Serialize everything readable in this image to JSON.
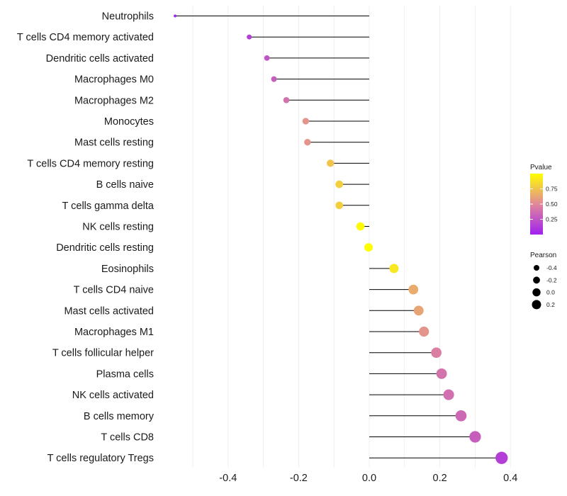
{
  "chart_data": {
    "type": "lollipop",
    "title": "",
    "xlabel": "",
    "ylabel": "",
    "xlim": [
      -0.55,
      0.4
    ],
    "xticks": [
      -0.4,
      -0.2,
      0.0,
      0.2,
      0.4
    ],
    "xtick_labels": [
      "-0.4",
      "-0.2",
      "0.0",
      "0.2",
      "0.4"
    ],
    "grid": "vertical",
    "baseline": 0.0,
    "categories": [
      "Neutrophils",
      "T cells CD4 memory activated",
      "Dendritic cells activated",
      "Macrophages M0",
      "Macrophages M2",
      "Monocytes",
      "Mast cells resting",
      "T cells CD4 memory resting",
      "B cells naive",
      "T cells gamma delta",
      "NK cells resting",
      "Dendritic cells resting",
      "Eosinophils",
      "T cells CD4 naive",
      "Mast cells activated",
      "Macrophages M1",
      "T cells follicular helper",
      "Plasma cells",
      "NK cells activated",
      "B cells memory",
      "T cells CD8",
      "T cells regulatory  Tregs"
    ],
    "pearson": [
      -0.55,
      -0.34,
      -0.29,
      -0.27,
      -0.235,
      -0.18,
      -0.175,
      -0.11,
      -0.085,
      -0.085,
      -0.025,
      -0.002,
      0.07,
      0.125,
      0.14,
      0.155,
      0.19,
      0.205,
      0.225,
      0.26,
      0.3,
      0.375
    ],
    "pvalue": [
      0.02,
      0.15,
      0.25,
      0.3,
      0.4,
      0.55,
      0.55,
      0.75,
      0.8,
      0.8,
      0.98,
      0.99,
      0.9,
      0.65,
      0.62,
      0.55,
      0.45,
      0.4,
      0.38,
      0.35,
      0.3,
      0.15
    ],
    "legend": {
      "color": {
        "title": "Pvalue",
        "ticks": [
          0.75,
          0.5,
          0.25
        ],
        "tick_labels": [
          "0.75",
          "0.50",
          "0.25"
        ],
        "range": [
          0.0,
          1.0
        ],
        "low_color": "#a020f0",
        "mid_color": "#e0889a",
        "high_color": "#ffff00"
      },
      "size": {
        "title": "Pearson",
        "values": [
          -0.4,
          -0.2,
          0.0,
          0.2
        ],
        "labels": [
          "-0.4",
          "-0.2",
          "0.0",
          "0.2"
        ]
      }
    }
  }
}
